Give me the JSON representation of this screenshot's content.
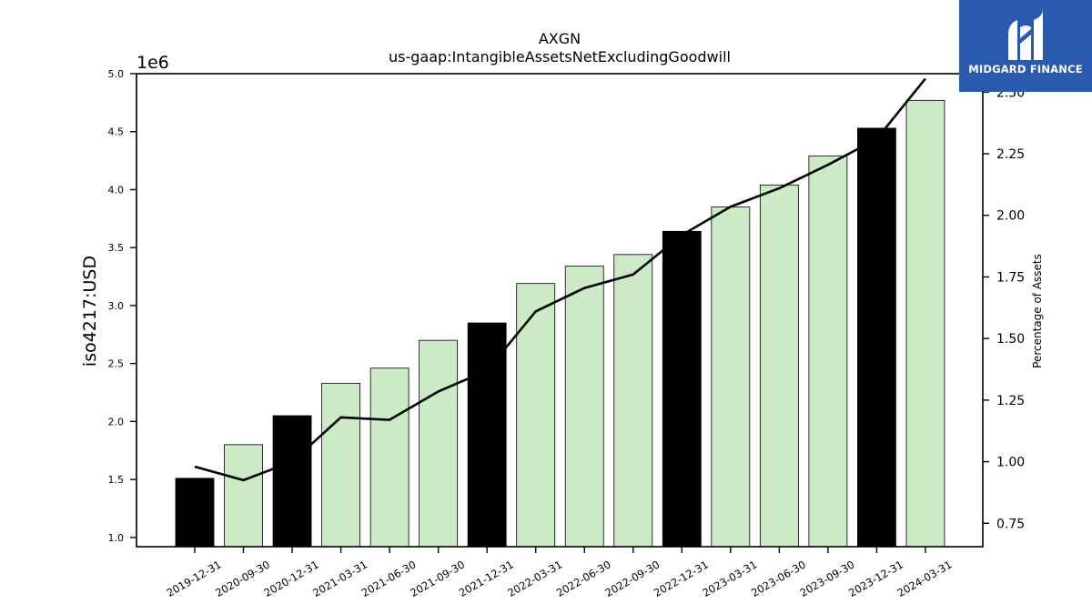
{
  "chart_data": {
    "type": "bar",
    "title": "AXGN",
    "subtitle": "us-gaap:IntangibleAssetsNetExcludingGoodwill",
    "ylabel": "iso4217:USD",
    "y_offset_text": "1e6",
    "y2label": "Percentage of Assets",
    "categories": [
      "2019-12-31",
      "2020-09-30",
      "2020-12-31",
      "2021-03-31",
      "2021-06-30",
      "2021-09-30",
      "2021-12-31",
      "2022-03-31",
      "2022-06-30",
      "2022-09-30",
      "2022-12-31",
      "2023-03-31",
      "2023-06-30",
      "2023-09-30",
      "2023-12-31",
      "2024-03-31"
    ],
    "series": [
      {
        "values": [
          1510000,
          1800000,
          2050000,
          2330000,
          2460000,
          2700000,
          2850000,
          3190000,
          3340000,
          3440000,
          3640000,
          3850000,
          4040000,
          4290000,
          4530000,
          4770000
        ],
        "axis": "left"
      },
      {
        "name": "Percentage of Assets",
        "type": "line",
        "values": [
          0.98,
          0.925,
          1.0,
          1.18,
          1.17,
          1.285,
          1.37,
          1.61,
          1.705,
          1.76,
          1.92,
          2.035,
          2.11,
          2.205,
          2.31,
          2.555
        ],
        "axis": "right"
      }
    ],
    "bar_colors": [
      "#000000",
      "#cdeac6",
      "#000000",
      "#cdeac6",
      "#cdeac6",
      "#cdeac6",
      "#000000",
      "#cdeac6",
      "#cdeac6",
      "#cdeac6",
      "#000000",
      "#cdeac6",
      "#cdeac6",
      "#cdeac6",
      "#000000",
      "#cdeac6"
    ],
    "ylim": [
      920000,
      5000000
    ],
    "y2lim": [
      0.655,
      2.575
    ],
    "yticks": [
      1.0,
      1.5,
      2.0,
      2.5,
      3.0,
      3.5,
      4.0,
      4.5,
      5.0
    ],
    "yticks_labels": [
      "1.0",
      "1.5",
      "2.0",
      "2.5",
      "3.0",
      "3.5",
      "4.0",
      "4.5",
      "5.0"
    ],
    "y2ticks": [
      0.75,
      1.0,
      1.25,
      1.5,
      1.75,
      2.0,
      2.25,
      2.5
    ],
    "y2ticks_labels": [
      "0.75",
      "1.00",
      "1.25",
      "1.50",
      "1.75",
      "2.00",
      "2.25",
      "2.50"
    ],
    "grid": false,
    "legend": "none"
  },
  "logo": {
    "text": "MIDGARD FINANCE",
    "color": "#2a5ab0"
  }
}
